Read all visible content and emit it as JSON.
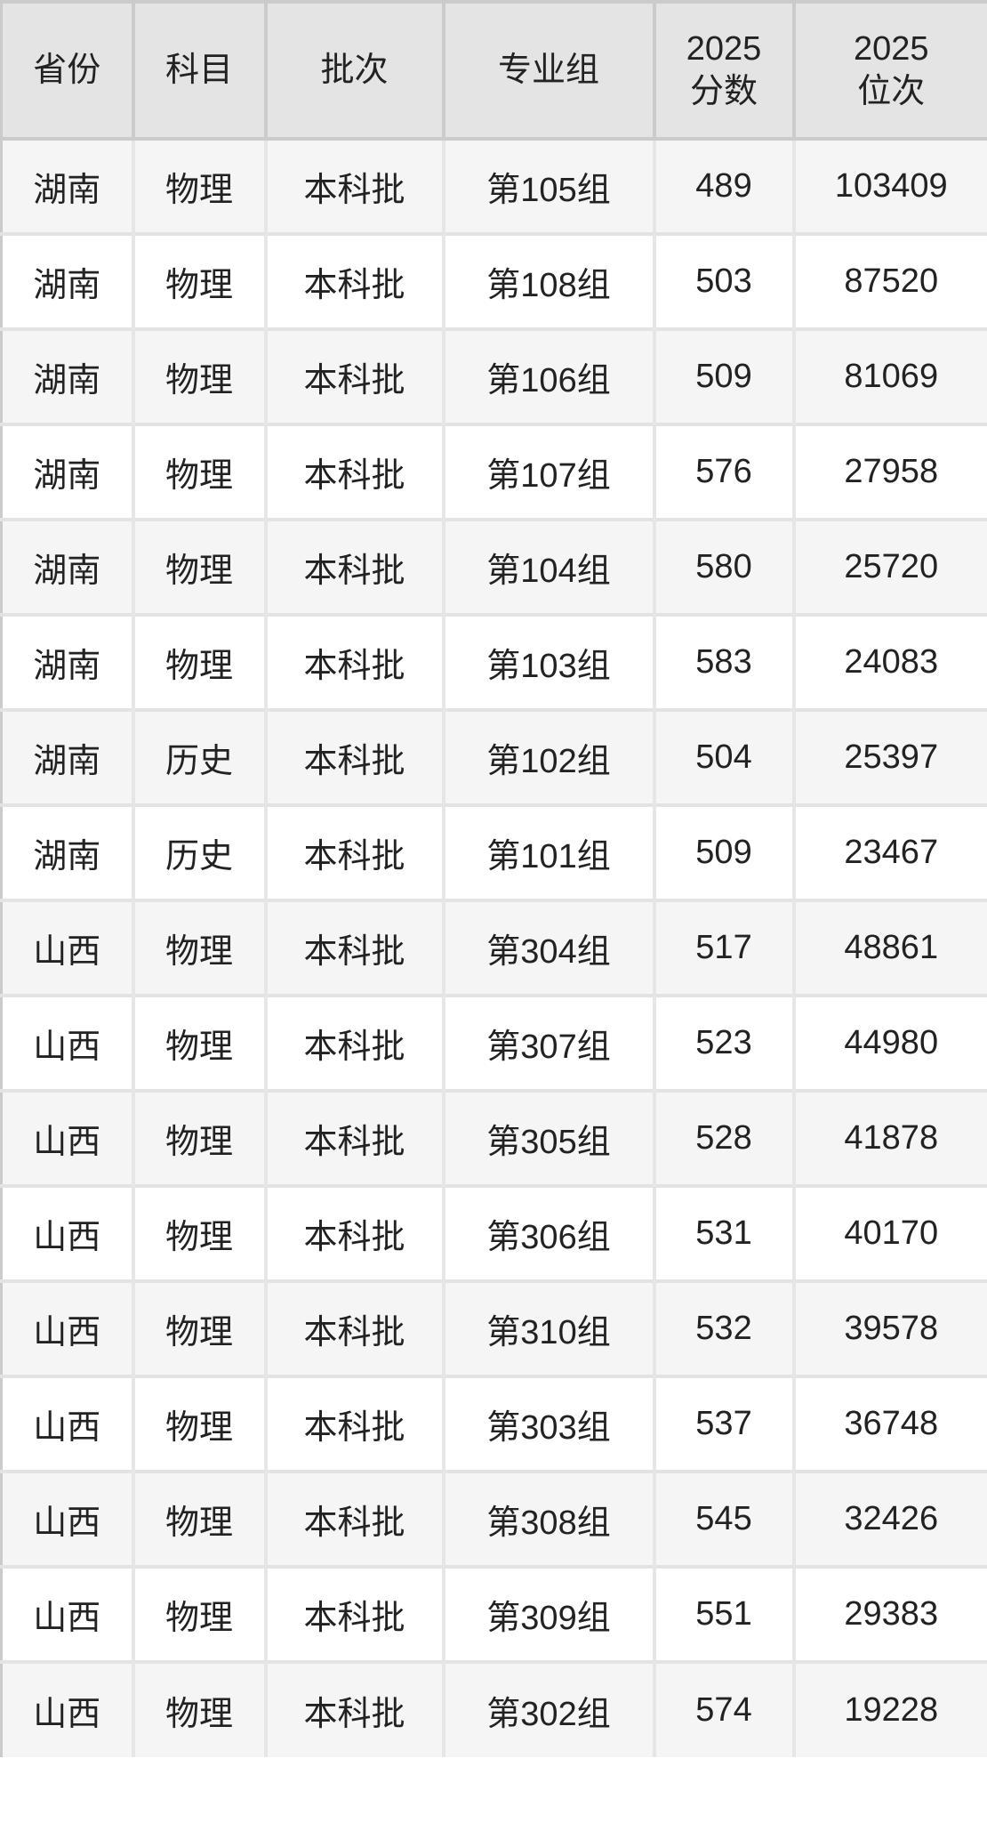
{
  "colors": {
    "header_bg": "#e4e4e4",
    "header_line": "#cbcbcb",
    "grid_line_v": "#e6e6e6",
    "grid_line_h": "#e3e3e3",
    "row_alt_bg": "#f5f5f6",
    "text": "#222222"
  },
  "chart_data": {
    "type": "table",
    "title": "",
    "columns": [
      {
        "id": "province",
        "label": "省份"
      },
      {
        "id": "subject",
        "label": "科目"
      },
      {
        "id": "batch",
        "label": "批次"
      },
      {
        "id": "group",
        "label": "专业组"
      },
      {
        "id": "score",
        "label": "2025\n分数"
      },
      {
        "id": "rank",
        "label": "2025\n位次"
      }
    ],
    "rows": [
      {
        "province": "湖南",
        "subject": "物理",
        "batch": "本科批",
        "group": "第105组",
        "score": "489",
        "rank": "103409"
      },
      {
        "province": "湖南",
        "subject": "物理",
        "batch": "本科批",
        "group": "第108组",
        "score": "503",
        "rank": "87520"
      },
      {
        "province": "湖南",
        "subject": "物理",
        "batch": "本科批",
        "group": "第106组",
        "score": "509",
        "rank": "81069"
      },
      {
        "province": "湖南",
        "subject": "物理",
        "batch": "本科批",
        "group": "第107组",
        "score": "576",
        "rank": "27958"
      },
      {
        "province": "湖南",
        "subject": "物理",
        "batch": "本科批",
        "group": "第104组",
        "score": "580",
        "rank": "25720"
      },
      {
        "province": "湖南",
        "subject": "物理",
        "batch": "本科批",
        "group": "第103组",
        "score": "583",
        "rank": "24083"
      },
      {
        "province": "湖南",
        "subject": "历史",
        "batch": "本科批",
        "group": "第102组",
        "score": "504",
        "rank": "25397"
      },
      {
        "province": "湖南",
        "subject": "历史",
        "batch": "本科批",
        "group": "第101组",
        "score": "509",
        "rank": "23467"
      },
      {
        "province": "山西",
        "subject": "物理",
        "batch": "本科批",
        "group": "第304组",
        "score": "517",
        "rank": "48861"
      },
      {
        "province": "山西",
        "subject": "物理",
        "batch": "本科批",
        "group": "第307组",
        "score": "523",
        "rank": "44980"
      },
      {
        "province": "山西",
        "subject": "物理",
        "batch": "本科批",
        "group": "第305组",
        "score": "528",
        "rank": "41878"
      },
      {
        "province": "山西",
        "subject": "物理",
        "batch": "本科批",
        "group": "第306组",
        "score": "531",
        "rank": "40170"
      },
      {
        "province": "山西",
        "subject": "物理",
        "batch": "本科批",
        "group": "第310组",
        "score": "532",
        "rank": "39578"
      },
      {
        "province": "山西",
        "subject": "物理",
        "batch": "本科批",
        "group": "第303组",
        "score": "537",
        "rank": "36748"
      },
      {
        "province": "山西",
        "subject": "物理",
        "batch": "本科批",
        "group": "第308组",
        "score": "545",
        "rank": "32426"
      },
      {
        "province": "山西",
        "subject": "物理",
        "batch": "本科批",
        "group": "第309组",
        "score": "551",
        "rank": "29383"
      },
      {
        "province": "山西",
        "subject": "物理",
        "batch": "本科批",
        "group": "第302组",
        "score": "574",
        "rank": "19228"
      }
    ]
  }
}
